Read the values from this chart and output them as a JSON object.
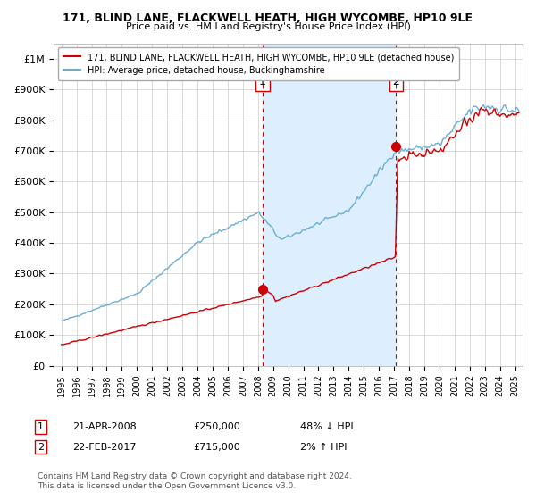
{
  "title": "171, BLIND LANE, FLACKWELL HEATH, HIGH WYCOMBE, HP10 9LE",
  "subtitle": "Price paid vs. HM Land Registry's House Price Index (HPI)",
  "legend_line1": "171, BLIND LANE, FLACKWELL HEATH, HIGH WYCOMBE, HP10 9LE (detached house)",
  "legend_line2": "HPI: Average price, detached house, Buckinghamshire",
  "annotation1_label": "1",
  "annotation1_date": "21-APR-2008",
  "annotation1_price": "£250,000",
  "annotation1_hpi": "48% ↓ HPI",
  "annotation2_label": "2",
  "annotation2_date": "22-FEB-2017",
  "annotation2_price": "£715,000",
  "annotation2_hpi": "2% ↑ HPI",
  "footer": "Contains HM Land Registry data © Crown copyright and database right 2024.\nThis data is licensed under the Open Government Licence v3.0.",
  "hpi_color": "#6aaed6",
  "price_color": "#cc0000",
  "point_color": "#cc0000",
  "vline_color": "#cc0000",
  "shade_color": "#ddeeff",
  "grid_color": "#cccccc",
  "background_color": "#ffffff",
  "annotation_box_color": "#cc0000",
  "xlim_start": 1994.5,
  "xlim_end": 2025.5,
  "ylim_bottom": 0,
  "ylim_top": 1050000,
  "sale1_year": 2008.31,
  "sale1_price": 250000,
  "sale2_year": 2017.14,
  "sale2_price": 715000
}
